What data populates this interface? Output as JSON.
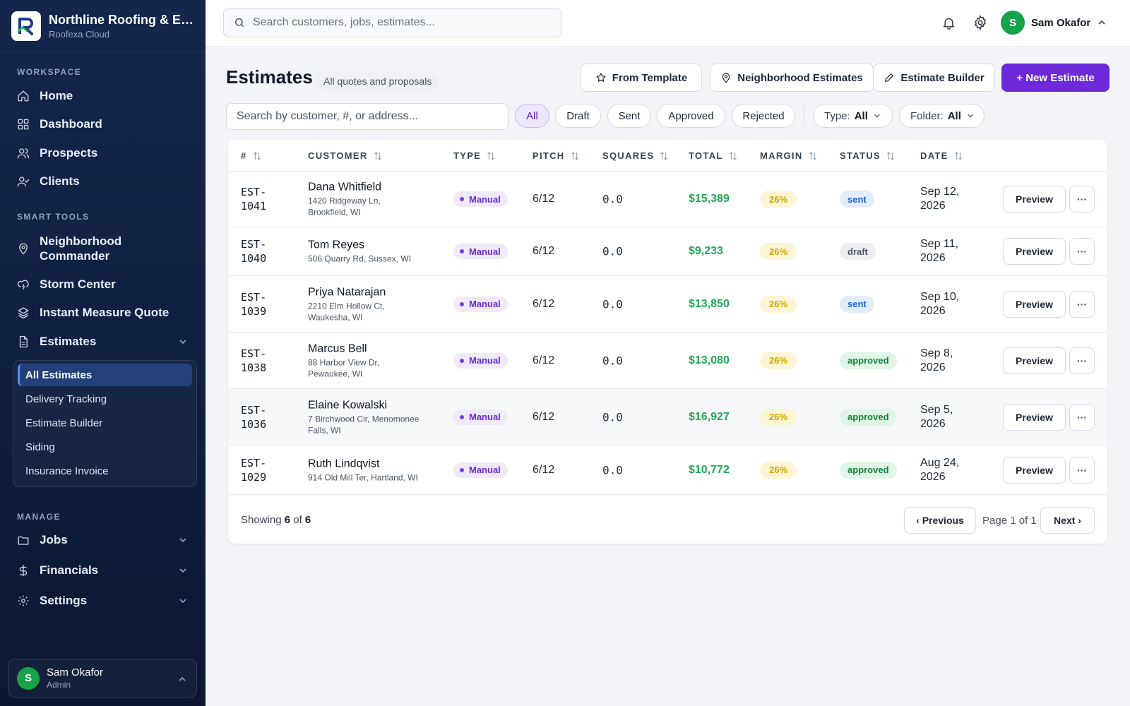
{
  "brand": {
    "title": "Northline Roofing & Exteriors",
    "subtitle": "Roofexa Cloud",
    "logo_icon": "roofexa-logo-icon"
  },
  "sidebar": {
    "sections": [
      "WORKSPACE",
      "SMART TOOLS",
      "MANAGE"
    ],
    "workspace": [
      {
        "label": "Home",
        "icon": "home-icon"
      },
      {
        "label": "Dashboard",
        "icon": "grid-icon"
      },
      {
        "label": "Prospects",
        "icon": "users-icon"
      },
      {
        "label": "Clients",
        "icon": "user-check-icon"
      }
    ],
    "smart_tools": [
      {
        "label": "Neighborhood Commander",
        "icon": "map-pin-icon"
      },
      {
        "label": "Storm Center",
        "icon": "storm-cloud-icon"
      },
      {
        "label": "Instant Measure Quote",
        "icon": "layers-icon"
      },
      {
        "label": "Estimates",
        "icon": "document-icon"
      }
    ],
    "estimates_sub": [
      "All Estimates",
      "Delivery Tracking",
      "Estimate Builder",
      "Siding",
      "Insurance Invoice"
    ],
    "manage": [
      {
        "label": "Jobs",
        "icon": "folder-icon"
      },
      {
        "label": "Financials",
        "icon": "dollar-icon"
      },
      {
        "label": "Settings",
        "icon": "gear-icon"
      }
    ],
    "user": {
      "name": "Sam Okafor",
      "role": "Admin",
      "initial": "S"
    }
  },
  "topbar": {
    "search_placeholder": "Search customers, jobs, estimates...",
    "user_name": "Sam Okafor",
    "user_initial": "S"
  },
  "header": {
    "title": "Estimates",
    "badge": "All quotes and proposals",
    "buttons": {
      "from_template": "From Template",
      "neighborhood": "Neighborhood Estimates",
      "builder": "Estimate Builder",
      "new": "+ New Estimate"
    }
  },
  "filters": {
    "search_placeholder": "Search by customer, #, or address...",
    "chips": [
      "All",
      "Draft",
      "Sent",
      "Approved",
      "Rejected"
    ],
    "active_chip": "All",
    "type_label": "Type:",
    "type_value": "All",
    "folder_label": "Folder:",
    "folder_value": "All"
  },
  "table": {
    "columns": [
      "#",
      "CUSTOMER",
      "TYPE",
      "PITCH",
      "SQUARES",
      "TOTAL",
      "MARGIN",
      "STATUS",
      "DATE"
    ],
    "rows": [
      {
        "id_a": "EST-",
        "id_b": "1041",
        "name": "Dana Whitfield",
        "addr_a": "1420 Ridgeway Ln,",
        "addr_b": "Brookfield, WI",
        "type": "Manual",
        "pitch": "6/12",
        "squares": "0.0",
        "total": "$15,389",
        "margin": "26%",
        "status": "sent",
        "date_a": "Sep 12,",
        "date_b": "2026",
        "preview": "Preview",
        "more": "···"
      },
      {
        "id_a": "EST-",
        "id_b": "1040",
        "name": "Tom Reyes",
        "addr_a": "506 Quarry Rd, Sussex, WI",
        "addr_b": "",
        "type": "Manual",
        "pitch": "6/12",
        "squares": "0.0",
        "total": "$9,233",
        "margin": "26%",
        "status": "draft",
        "date_a": "Sep 11,",
        "date_b": "2026",
        "preview": "Preview",
        "more": "···"
      },
      {
        "id_a": "EST-",
        "id_b": "1039",
        "name": "Priya Natarajan",
        "addr_a": "2210 Elm Hollow Ct,",
        "addr_b": "Waukesha, WI",
        "type": "Manual",
        "pitch": "6/12",
        "squares": "0.0",
        "total": "$13,850",
        "margin": "26%",
        "status": "sent",
        "date_a": "Sep 10,",
        "date_b": "2026",
        "preview": "Preview",
        "more": "···"
      },
      {
        "id_a": "EST-",
        "id_b": "1038",
        "name": "Marcus Bell",
        "addr_a": "88 Harbor View Dr,",
        "addr_b": "Pewaukee, WI",
        "type": "Manual",
        "pitch": "6/12",
        "squares": "0.0",
        "total": "$13,080",
        "margin": "26%",
        "status": "approved",
        "date_a": "Sep 8,",
        "date_b": "2026",
        "preview": "Preview",
        "more": "···"
      },
      {
        "id_a": "EST-",
        "id_b": "1036",
        "name": "Elaine Kowalski",
        "addr_a": "7 Birchwood Cir, Menomonee",
        "addr_b": "Falls, WI",
        "type": "Manual",
        "pitch": "6/12",
        "squares": "0.0",
        "total": "$16,927",
        "margin": "26%",
        "status": "approved",
        "date_a": "Sep 5,",
        "date_b": "2026",
        "preview": "Preview",
        "more": "···"
      },
      {
        "id_a": "EST-",
        "id_b": "1029",
        "name": "Ruth Lindqvist",
        "addr_a": "914 Old Mill Ter, Hartland, WI",
        "addr_b": "",
        "type": "Manual",
        "pitch": "6/12",
        "squares": "0.0",
        "total": "$10,772",
        "margin": "26%",
        "status": "approved",
        "date_a": "Aug 24,",
        "date_b": "2026",
        "preview": "Preview",
        "more": "···"
      }
    ]
  },
  "footer": {
    "showing_prefix": "Showing",
    "shown": "6",
    "of_word": "of",
    "total": "6",
    "prev": "‹ Previous",
    "page_text": "Page 1 of 1",
    "next": "Next ›"
  },
  "colors": {
    "sidebar_bg": "#14264c",
    "accent": "#6d28d9",
    "total_green": "#22a854",
    "avatar_green": "#16a34a"
  }
}
